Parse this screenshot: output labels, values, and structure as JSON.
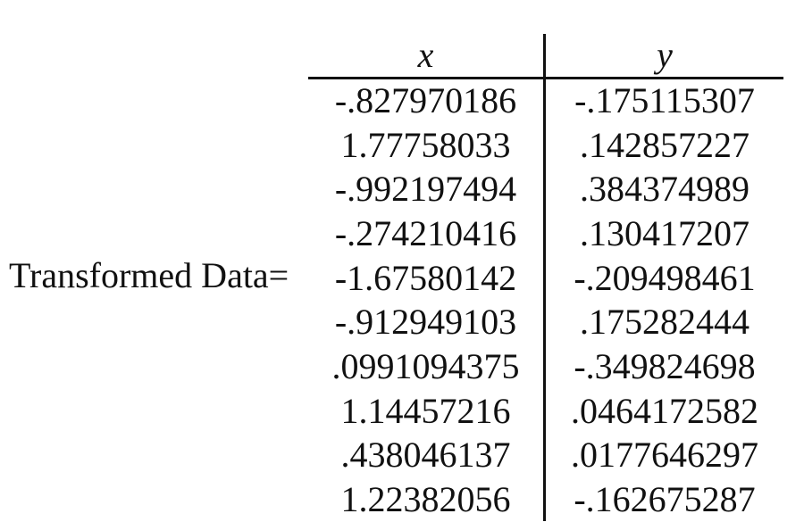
{
  "label": "Transformed Data=",
  "columns": {
    "x": "x",
    "y": "y"
  },
  "rows": [
    {
      "x": "-.827970186",
      "y": "-.175115307"
    },
    {
      "x": "1.77758033",
      "y": ".142857227"
    },
    {
      "x": "-.992197494",
      "y": ".384374989"
    },
    {
      "x": "-.274210416",
      "y": ".130417207"
    },
    {
      "x": "-1.67580142",
      "y": "-.209498461"
    },
    {
      "x": "-.912949103",
      "y": ".175282444"
    },
    {
      "x": ".0991094375",
      "y": "-.349824698"
    },
    {
      "x": "1.14457216",
      "y": ".0464172582"
    },
    {
      "x": ".438046137",
      "y": ".0177646297"
    },
    {
      "x": "1.22382056",
      "y": "-.162675287"
    }
  ]
}
